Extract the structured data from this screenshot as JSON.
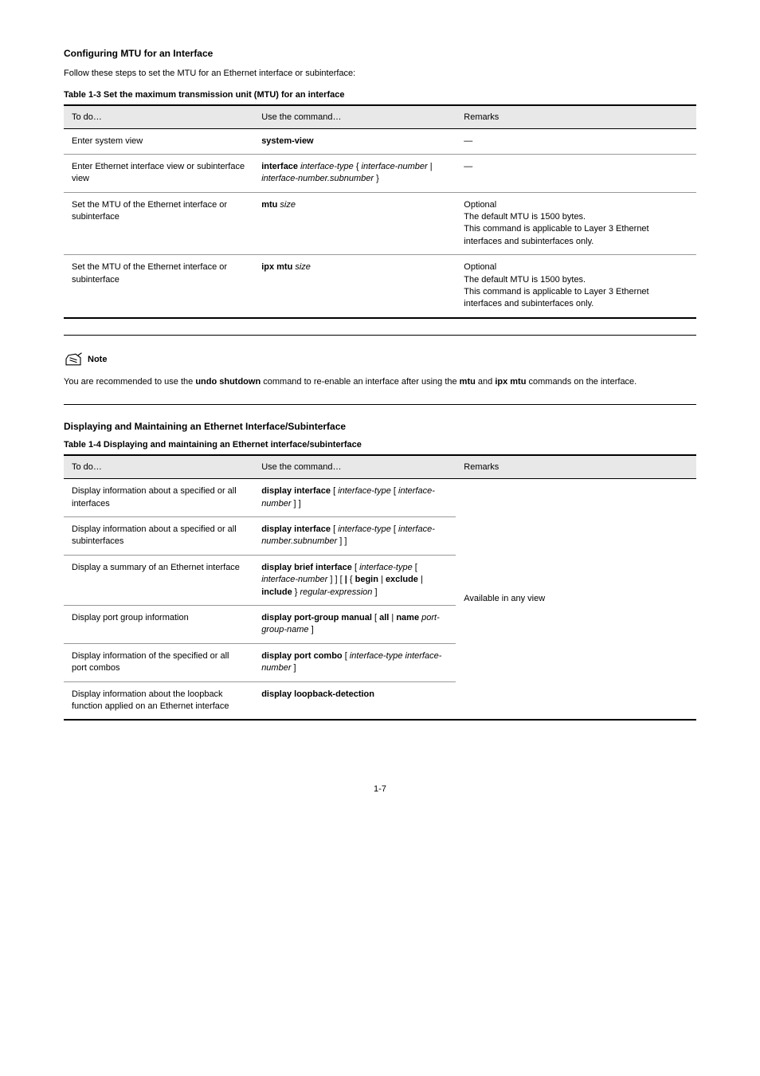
{
  "sections": {
    "mtuConfig": {
      "title": "Configuring MTU for an Interface",
      "paragraph": "Follow these steps to set the MTU for an Ethernet interface or subinterface:",
      "table": {
        "caption": "Table 1-3 Set the maximum transmission unit (MTU) for an interface",
        "columns": [
          "To do…",
          "Use the command…",
          "Remarks"
        ],
        "column_widths": [
          "30%",
          "32%",
          "38%"
        ],
        "rows": [
          {
            "todo": "Enter system view",
            "cmd": "system-view",
            "remarks": "—"
          },
          {
            "todo": "Enter Ethernet interface view or subinterface view",
            "cmd": "interface interface-type { interface-number | interface-number.subnumber }",
            "remarks": "—",
            "cmd_parts": [
              {
                "text": "interface ",
                "bold": true
              },
              {
                "text": "interface-type ",
                "bold": false,
                "italic": true
              },
              {
                "text": "{ ",
                "bold": false
              },
              {
                "text": "interface-number ",
                "bold": false,
                "italic": true
              },
              {
                "text": "| ",
                "bold": false
              },
              {
                "text": "interface-number.subnumber ",
                "bold": false,
                "italic": true
              },
              {
                "text": "}",
                "bold": false
              }
            ]
          },
          {
            "todo": "Set the MTU of the Ethernet interface or subinterface",
            "cmd": "mtu size",
            "cmd_parts": [
              {
                "text": "mtu ",
                "bold": true
              },
              {
                "text": "size",
                "bold": false,
                "italic": true
              }
            ],
            "remarks": "Optional\nThe default MTU is 1500 bytes.\nThis command is applicable to Layer 3 Ethernet interfaces and subinterfaces only."
          },
          {
            "todo": "Set the MTU of the Ethernet interface or subinterface",
            "cmd": "ipx mtu size",
            "cmd_parts": [
              {
                "text": "ipx mtu ",
                "bold": true
              },
              {
                "text": "size",
                "bold": false,
                "italic": true
              }
            ],
            "remarks": "Optional\nThe default MTU is 1500 bytes.\nThis command is applicable to Layer 3 Ethernet interfaces and subinterfaces only."
          }
        ]
      }
    },
    "note": {
      "label": "Note",
      "text": "You are recommended to use the undo shutdown command to re-enable an interface after using the mtu and ipx mtu commands on the interface.",
      "text_parts": [
        {
          "text": "You are recommended to use the ",
          "bold": false
        },
        {
          "text": "undo shutdown",
          "bold": true
        },
        {
          "text": " command to re-enable an interface after using the ",
          "bold": false
        },
        {
          "text": "mtu",
          "bold": true
        },
        {
          "text": " and ",
          "bold": false
        },
        {
          "text": "ipx mtu",
          "bold": true
        },
        {
          "text": " commands on the interface.",
          "bold": false
        }
      ]
    },
    "displayMaintain": {
      "title": "Displaying and Maintaining an Ethernet Interface/Subinterface",
      "table": {
        "caption": "Table 1-4 Displaying and maintaining an Ethernet interface/subinterface",
        "columns": [
          "To do…",
          "Use the command…",
          "Remarks"
        ],
        "column_widths": [
          "30%",
          "32%",
          "38%"
        ],
        "rows": [
          {
            "todo": "Display information about a specified or all interfaces",
            "cmd_parts": [
              {
                "text": "display interface ",
                "bold": true
              },
              {
                "text": "[ ",
                "bold": false
              },
              {
                "text": "interface-type ",
                "bold": false,
                "italic": true
              },
              {
                "text": "[ ",
                "bold": false
              },
              {
                "text": "interface-number ",
                "bold": false,
                "italic": true
              },
              {
                "text": "] ]",
                "bold": false
              }
            ],
            "remarks": ""
          },
          {
            "todo": "Display information about a specified or all subinterfaces",
            "cmd_parts": [
              {
                "text": "display interface ",
                "bold": true
              },
              {
                "text": "[ ",
                "bold": false
              },
              {
                "text": "interface-type ",
                "bold": false,
                "italic": true
              },
              {
                "text": "[ ",
                "bold": false
              },
              {
                "text": "interface-number.subnumber ",
                "bold": false,
                "italic": true
              },
              {
                "text": "] ]",
                "bold": false
              }
            ],
            "remarks": ""
          },
          {
            "todo": "Display a summary of an Ethernet interface",
            "cmd_parts": [
              {
                "text": "display brief interface ",
                "bold": true
              },
              {
                "text": "[ ",
                "bold": false
              },
              {
                "text": "interface-type ",
                "bold": false,
                "italic": true
              },
              {
                "text": "[ ",
                "bold": false
              },
              {
                "text": "interface-number ",
                "bold": false,
                "italic": true
              },
              {
                "text": "] ] [ ",
                "bold": false
              },
              {
                "text": "| ",
                "bold": true
              },
              {
                "text": "{ ",
                "bold": false
              },
              {
                "text": "begin ",
                "bold": true
              },
              {
                "text": "| ",
                "bold": false
              },
              {
                "text": "exclude ",
                "bold": true
              },
              {
                "text": "| ",
                "bold": false
              },
              {
                "text": "include ",
                "bold": true
              },
              {
                "text": "} ",
                "bold": false
              },
              {
                "text": "regular-expression ",
                "bold": false,
                "italic": true
              },
              {
                "text": "]",
                "bold": false
              }
            ],
            "remarks": ""
          },
          {
            "todo": "Display port group information",
            "cmd_parts": [
              {
                "text": "display port-group manual ",
                "bold": true
              },
              {
                "text": "[ ",
                "bold": false
              },
              {
                "text": "all ",
                "bold": true
              },
              {
                "text": "| ",
                "bold": false
              },
              {
                "text": "name ",
                "bold": true
              },
              {
                "text": "port-group-name ",
                "bold": false,
                "italic": true
              },
              {
                "text": "]",
                "bold": false
              }
            ],
            "remarks": "Available in any view"
          },
          {
            "todo": "Display information of the specified or all port combos",
            "cmd_parts": [
              {
                "text": "display port combo ",
                "bold": true
              },
              {
                "text": "[ ",
                "bold": false
              },
              {
                "text": "interface-type interface-number ",
                "bold": false,
                "italic": true
              },
              {
                "text": "]",
                "bold": false
              }
            ],
            "remarks": ""
          },
          {
            "todo": "Display information about the loopback function applied on an Ethernet interface",
            "cmd_parts": [
              {
                "text": "display loopback-detection",
                "bold": true
              }
            ],
            "remarks": ""
          }
        ],
        "remarks_merge": "Available in any view"
      }
    }
  },
  "pageNumber": "1-7",
  "colors": {
    "background": "#ffffff",
    "text": "#000000",
    "header_bg": "#e8e8e8",
    "border_strong": "#000000",
    "border_light": "#999999"
  },
  "typography": {
    "body_font": "Arial, sans-serif",
    "title_size": 12,
    "body_size": 11,
    "title_weight": "bold"
  }
}
